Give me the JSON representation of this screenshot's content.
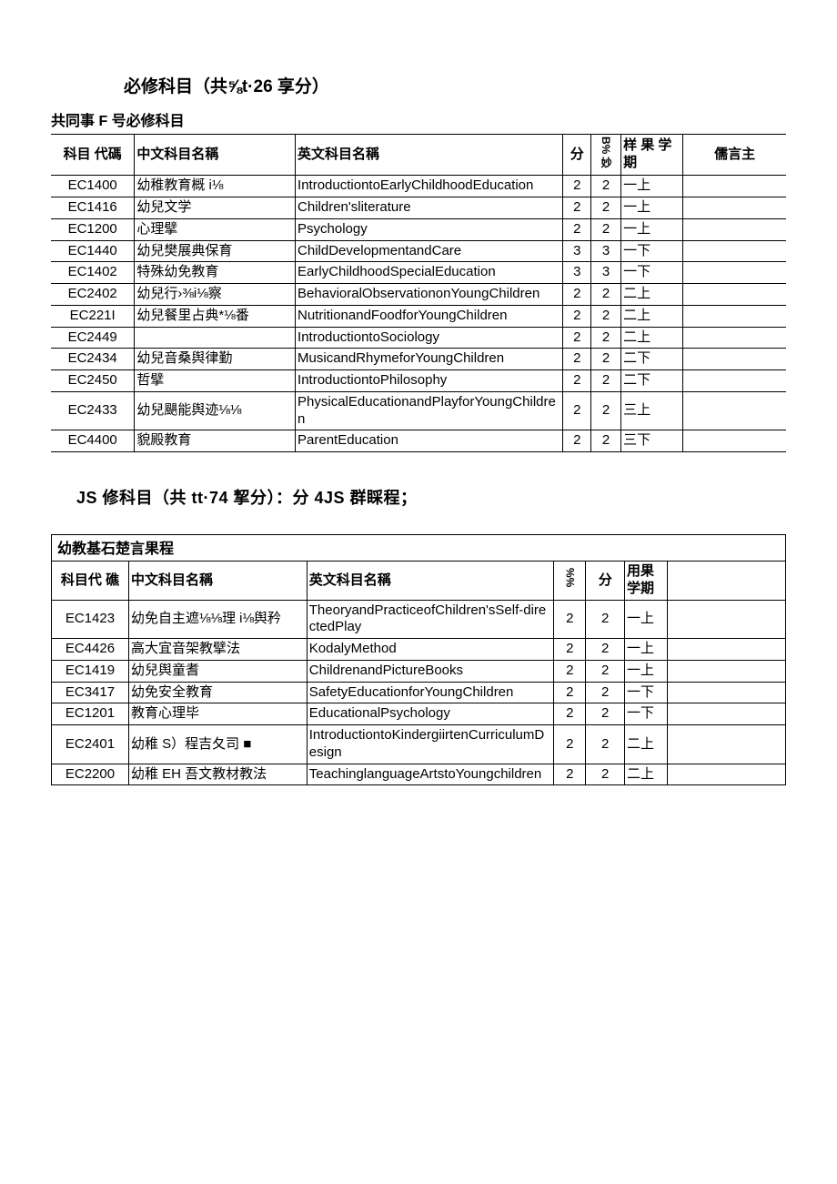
{
  "section1": {
    "title": "必修科目（共⅝t·26 享分）",
    "subtitle": "共同事 F 号必修科目",
    "headers": {
      "code": "科目\n代碼",
      "cn": "中文科目名稱",
      "en": "英文科目名稱",
      "credits": "分",
      "hours": "B%\n妙",
      "semester": "样 果 学\n期",
      "note": "儒言主"
    },
    "rows": [
      {
        "code": "EC1400",
        "cn": "幼稚教育概 i⅛",
        "en": "IntroductiontoEarlyChildhoodEducation",
        "cr": "2",
        "hr": "2",
        "sem": "一上",
        "note": ""
      },
      {
        "code": "EC1416",
        "cn": "幼兒文学",
        "en": "Children'sliterature",
        "cr": "2",
        "hr": "2",
        "sem": "一上",
        "note": ""
      },
      {
        "code": "EC1200",
        "cn": "心理擘",
        "en": "Psychology",
        "cr": "2",
        "hr": "2",
        "sem": "一上",
        "note": ""
      },
      {
        "code": "EC1440",
        "cn": "幼兒樊展典保育",
        "en": "ChildDevelopmentandCare",
        "cr": "3",
        "hr": "3",
        "sem": "一下",
        "note": ""
      },
      {
        "code": "EC1402",
        "cn": "特殊幼免教育",
        "en": "EarlyChildhoodSpecialEducation",
        "cr": "3",
        "hr": "3",
        "sem": "一下",
        "note": ""
      },
      {
        "code": "EC2402",
        "cn": "幼兒行›⅜i⅛察",
        "en": "BehavioralObservationonYoungChildren",
        "cr": "2",
        "hr": "2",
        "sem": "二上",
        "note": ""
      },
      {
        "code": "EC221I",
        "cn": "幼兒餐里占典*⅛番",
        "en": "NutritionandFoodforYoungChildren",
        "cr": "2",
        "hr": "2",
        "sem": "二上",
        "note": ""
      },
      {
        "code": "EC2449",
        "cn": "",
        "en": "IntroductiontoSociology",
        "cr": "2",
        "hr": "2",
        "sem": "二上",
        "note": ""
      },
      {
        "code": "EC2434",
        "cn": "幼兒音桑舆律勤",
        "en": "MusicandRhymeforYoungChildren",
        "cr": "2",
        "hr": "2",
        "sem": "二下",
        "note": ""
      },
      {
        "code": "EC2450",
        "cn": "哲擘",
        "en": "IntroductiontoPhilosophy",
        "cr": "2",
        "hr": "2",
        "sem": "二下",
        "note": ""
      },
      {
        "code": "EC2433",
        "cn": "幼兒颶能舆迹⅛⅛",
        "en": "PhysicalEducationandPlayforYoungChildren",
        "cr": "2",
        "hr": "2",
        "sem": "三上",
        "note": ""
      },
      {
        "code": "EC4400",
        "cn": "貌殿教育",
        "en": "ParentEducation",
        "cr": "2",
        "hr": "2",
        "sem": "三下",
        "note": ""
      }
    ]
  },
  "section2": {
    "title": "JS 修科目（共 tt·74 挈分）：分 4JS 群睬程；",
    "group_title": "幼教基石楚言果程",
    "headers": {
      "code": "科目代\n礁",
      "cn": "中文科目名稱",
      "en": "英文科目名稱",
      "credits": "%%",
      "hours": "分",
      "semester": "用果\n学期",
      "note": ""
    },
    "rows": [
      {
        "code": "EC1423",
        "cn": "幼免自主遮⅛⅛理 i⅛舆矜",
        "en": "TheoryandPracticeofChildren'sSelf-directedPlay",
        "cr": "2",
        "hr": "2",
        "sem": "一上",
        "note": ""
      },
      {
        "code": "EC4426",
        "cn": "高大宜音架教擘法",
        "en": "KodalyMethod",
        "cr": "2",
        "hr": "2",
        "sem": "一上",
        "note": ""
      },
      {
        "code": "EC1419",
        "cn": "幼兒舆童耆",
        "en": "ChildrenandPictureBooks",
        "cr": "2",
        "hr": "2",
        "sem": "一上",
        "note": ""
      },
      {
        "code": "EC3417",
        "cn": "幼免安全教育",
        "en": "SafetyEducationforYoungChildren",
        "cr": "2",
        "hr": "2",
        "sem": "一下",
        "note": ""
      },
      {
        "code": "EC1201",
        "cn": "教育心理毕",
        "en": "EducationalPsychology",
        "cr": "2",
        "hr": "2",
        "sem": "一下",
        "note": ""
      },
      {
        "code": "EC2401",
        "cn": "幼稚 S）程吉夂司 ■",
        "en": "IntroductiontoKindergiirtenCurriculumDesign",
        "cr": "2",
        "hr": "2",
        "sem": "二上",
        "note": ""
      },
      {
        "code": "EC2200",
        "cn": "幼稚 EH 吾文教材教法",
        "en": "TeachinglanguageArtstoYoungchildren",
        "cr": "2",
        "hr": "2",
        "sem": "二上",
        "note": ""
      }
    ]
  }
}
